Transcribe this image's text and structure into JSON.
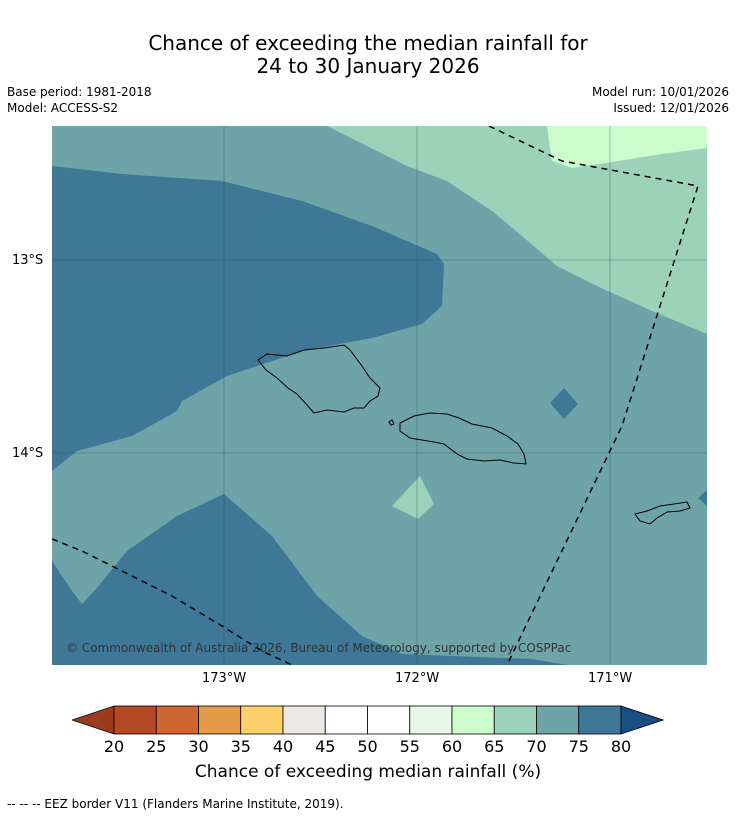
{
  "title_line1": "Chance of exceeding the median rainfall for",
  "title_line2": "24 to 30 January 2026",
  "base_period": "Base period: 1981-2018",
  "model": "Model: ACCESS-S2",
  "model_run": "Model run: 10/01/2026",
  "issued": "Issued: 12/01/2026",
  "lat_labels": [
    "13°S",
    "14°S"
  ],
  "lon_labels": [
    "173°W",
    "172°W",
    "171°W"
  ],
  "copyright": "© Commonwealth of Australia 2026, Bureau of Meteorology, supported by COSPPac",
  "colorbar": {
    "ticks": [
      "20",
      "25",
      "30",
      "35",
      "40",
      "45",
      "50",
      "55",
      "60",
      "65",
      "70",
      "75",
      "80"
    ],
    "colors": [
      "#9c3a1e",
      "#b34a24",
      "#cf6531",
      "#e49a47",
      "#fdd06b",
      "#ece8e4",
      "#ffffff",
      "#ffffff",
      "#e8f6e8",
      "#ccfccc",
      "#9dd2ba",
      "#6ea4a8",
      "#3f7796",
      "#1a4c86"
    ],
    "label": "Chance of exceeding median rainfall (%)"
  },
  "footnote": "--  --  -- EEZ border V11 (Flanders Marine Institute, 2019).",
  "map_colors": {
    "p60_65": "#ccfccc",
    "p65_70": "#9dd2ba",
    "p70_75": "#6ea4a8",
    "p75_80": "#3f7796"
  }
}
